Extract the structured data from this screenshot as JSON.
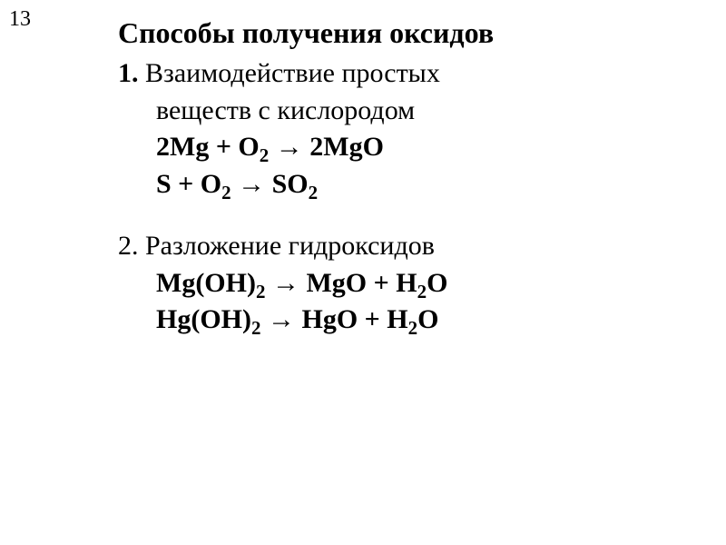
{
  "slide_number": "13",
  "title": "Способы получения оксидов",
  "section1": {
    "heading_num": "1.",
    "heading_l1": "Взаимодействие простых",
    "heading_l2": "веществ с кислородом",
    "eq1_a": "2Mg + O",
    "eq1_b": " → 2MgO",
    "eq2_a": "S + O",
    "eq2_b": " → SO"
  },
  "section2": {
    "heading_num": "2.",
    "heading_l1": "Разложение гидроксидов",
    "eq1_a": "Mg(OH)",
    "eq1_b": " → MgO + H",
    "eq1_c": "O",
    "eq2_a": "Hg(OH)",
    "eq2_b": " → HgO + H",
    "eq2_c": "O"
  },
  "sub2": "2"
}
